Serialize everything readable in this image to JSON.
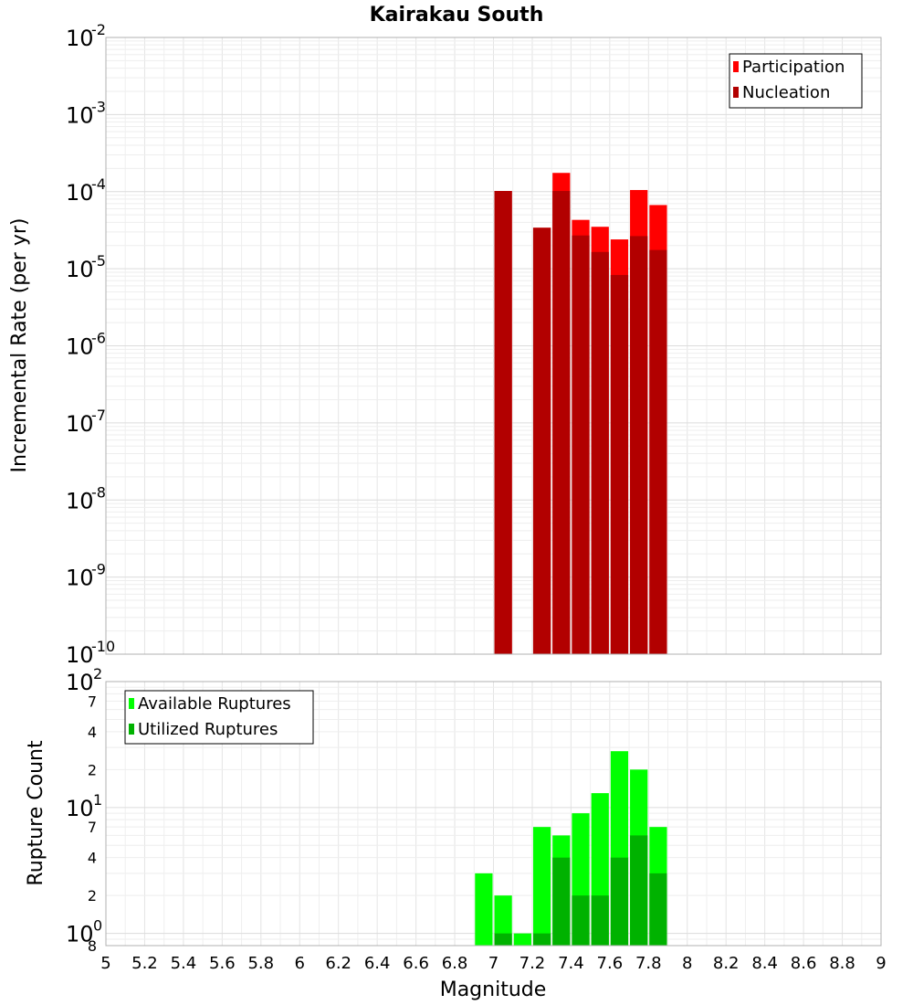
{
  "chart_data": [
    {
      "type": "bar",
      "title": "Kairakau South",
      "ylabel": "Incremental Rate (per yr)",
      "xlabel": "",
      "yscale": "log",
      "ylim": [
        1e-10,
        0.01
      ],
      "xlim": [
        5,
        9
      ],
      "bin_width": 0.1,
      "y_ticks": [
        {
          "base": "10",
          "exp": "-2",
          "value": 0.01
        },
        {
          "base": "10",
          "exp": "-3",
          "value": 0.001
        },
        {
          "base": "10",
          "exp": "-4",
          "value": 0.0001
        },
        {
          "base": "10",
          "exp": "-5",
          "value": 1e-05
        },
        {
          "base": "10",
          "exp": "-6",
          "value": 1e-06
        },
        {
          "base": "10",
          "exp": "-7",
          "value": 1e-07
        },
        {
          "base": "10",
          "exp": "-8",
          "value": 1e-08
        },
        {
          "base": "10",
          "exp": "-9",
          "value": 1e-09
        },
        {
          "base": "10",
          "exp": "-10",
          "value": 1e-10
        }
      ],
      "legend": {
        "position": "top-right",
        "entries": [
          "Participation",
          "Nucleation"
        ]
      },
      "colors": {
        "Participation": "#ff0000",
        "Nucleation": "#b20000"
      },
      "series": [
        {
          "name": "Participation",
          "x": [
            7.05,
            7.25,
            7.35,
            7.45,
            7.55,
            7.65,
            7.75,
            7.85
          ],
          "values": [
            0.000102,
            3.4e-05,
            0.000175,
            4.3e-05,
            3.5e-05,
            2.4e-05,
            0.000105,
            6.7e-05
          ]
        },
        {
          "name": "Nucleation",
          "x": [
            7.05,
            7.25,
            7.35,
            7.45,
            7.55,
            7.65,
            7.75,
            7.85
          ],
          "values": [
            0.000102,
            3.4e-05,
            0.000102,
            2.7e-05,
            1.65e-05,
            8.3e-06,
            2.65e-05,
            1.75e-05
          ]
        }
      ]
    },
    {
      "type": "bar",
      "title": "",
      "ylabel": "Rupture Count",
      "xlabel": "Magnitude",
      "yscale": "log",
      "ylim": [
        0.8,
        100
      ],
      "xlim": [
        5,
        9
      ],
      "bin_width": 0.1,
      "y_major_ticks": [
        {
          "base": "10",
          "exp": "2",
          "value": 100
        },
        {
          "base": "10",
          "exp": "1",
          "value": 10
        },
        {
          "base": "10",
          "exp": "0",
          "value": 1
        }
      ],
      "y_minor_ticks": [
        {
          "label": "7",
          "value": 70
        },
        {
          "label": "4",
          "value": 40
        },
        {
          "label": "2",
          "value": 20
        },
        {
          "label": "7",
          "value": 7
        },
        {
          "label": "4",
          "value": 4
        },
        {
          "label": "2",
          "value": 2
        },
        {
          "label": "8",
          "value": 0.8
        }
      ],
      "x_ticks": [
        "5",
        "5.2",
        "5.4",
        "5.6",
        "5.8",
        "6",
        "6.2",
        "6.4",
        "6.6",
        "6.8",
        "7",
        "7.2",
        "7.4",
        "7.6",
        "7.8",
        "8",
        "8.2",
        "8.4",
        "8.6",
        "8.8",
        "9"
      ],
      "legend": {
        "position": "top-left",
        "entries": [
          "Available Ruptures",
          "Utilized Ruptures"
        ]
      },
      "colors": {
        "Available Ruptures": "#00ff00",
        "Utilized Ruptures": "#00b200"
      },
      "series": [
        {
          "name": "Available Ruptures",
          "x": [
            6.95,
            7.05,
            7.15,
            7.25,
            7.35,
            7.45,
            7.55,
            7.65,
            7.75,
            7.85
          ],
          "values": [
            3,
            2,
            1,
            7,
            6,
            9,
            13,
            28,
            20,
            7
          ]
        },
        {
          "name": "Utilized Ruptures",
          "x": [
            6.95,
            7.05,
            7.15,
            7.25,
            7.35,
            7.45,
            7.55,
            7.65,
            7.75,
            7.85
          ],
          "values": [
            0,
            1,
            0,
            1,
            4,
            2,
            2,
            4,
            6,
            3
          ]
        }
      ]
    }
  ]
}
